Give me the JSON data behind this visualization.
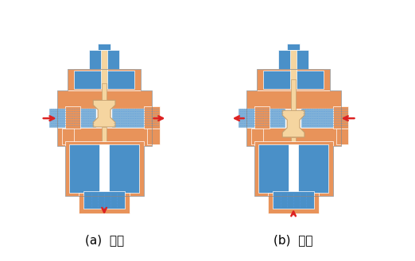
{
  "title": "",
  "label_a": "(a)  分流",
  "label_b": "(b)  合流",
  "bg_color": "#ffffff",
  "orange_color": "#E8935A",
  "blue_color": "#4A90C8",
  "beige_color": "#F5D5A0",
  "dark_blue": "#2060A0",
  "red_arrow": "#DD2222",
  "label_fontsize": 11,
  "fig_width": 5.22,
  "fig_height": 3.29,
  "dpi": 100
}
